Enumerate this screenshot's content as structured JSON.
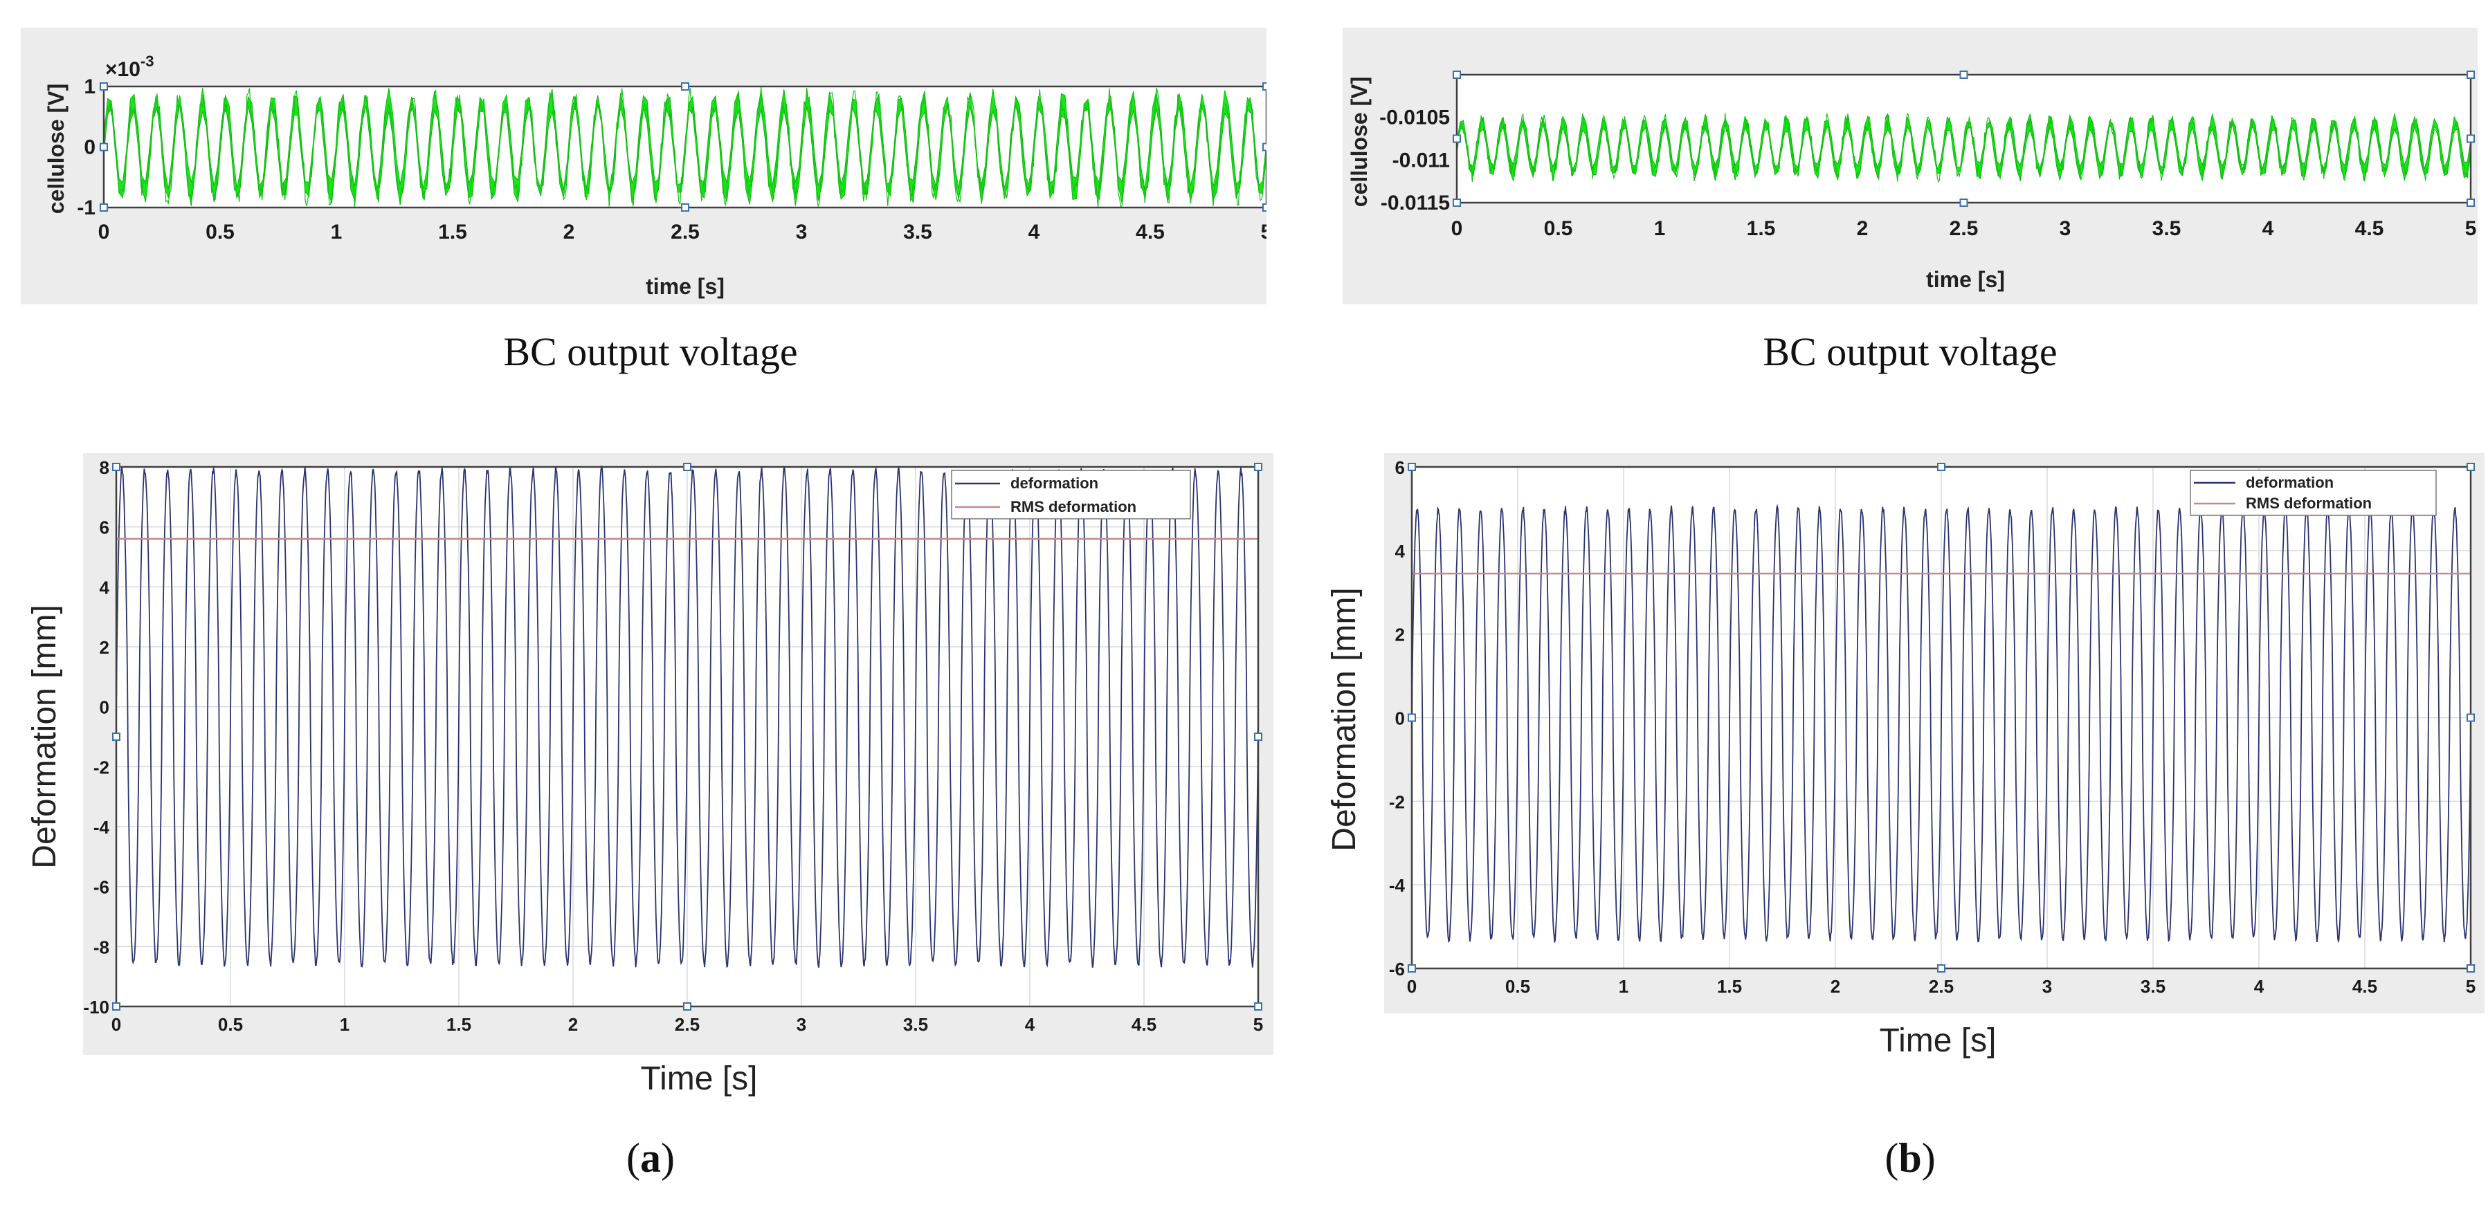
{
  "captions": {
    "top_left": "BC output voltage",
    "top_right": "BC output voltage"
  },
  "sublabels": {
    "a": {
      "open": "(",
      "letter": "a",
      "close": ")"
    },
    "b": {
      "open": "(",
      "letter": "b",
      "close": ")"
    }
  },
  "colors": {
    "voltage_signal": "#19e619",
    "deformation_signal": "#2a3470",
    "rms_line": "#c48a8a"
  },
  "chart_data": [
    {
      "id": "voltage-a",
      "type": "line",
      "title": "",
      "xlabel": "time [s]",
      "ylabel": "cellulose [V]",
      "xlim": [
        0,
        5
      ],
      "ylim": [
        -1,
        1
      ],
      "y_exponent_label": "×10",
      "y_exponent_power": "-3",
      "xticks": [
        "0",
        "0.5",
        "1",
        "1.5",
        "2",
        "2.5",
        "3",
        "3.5",
        "4",
        "4.5",
        "5"
      ],
      "yticks": [
        "1",
        "0",
        "-1"
      ],
      "ytick_values": [
        1,
        0,
        -1
      ],
      "series": [
        {
          "name": "cellulose",
          "frequency_hz": 10,
          "amplitude_mean": 0.78,
          "offset": 0.0,
          "band": 0.25,
          "unit_scale": "1e-3 V"
        }
      ],
      "grid": false
    },
    {
      "id": "voltage-b",
      "type": "line",
      "title": "",
      "xlabel": "time [s]",
      "ylabel": "cellulose [V]",
      "xlim": [
        0,
        5
      ],
      "ylim": [
        -0.0115,
        -0.01
      ],
      "xticks": [
        "0",
        "0.5",
        "1",
        "1.5",
        "2",
        "2.5",
        "3",
        "3.5",
        "4",
        "4.5",
        "5"
      ],
      "yticks": [
        "-0.0105",
        "-0.011",
        "-0.0115"
      ],
      "ytick_values": [
        -0.0105,
        -0.011,
        -0.0115
      ],
      "series": [
        {
          "name": "cellulose",
          "frequency_hz": 10,
          "amplitude_mean": 0.0003,
          "offset": -0.01085,
          "band": 0.00012
        }
      ],
      "grid": false
    },
    {
      "id": "deformation-a",
      "type": "line",
      "title": "",
      "xlabel": "Time [s]",
      "ylabel": "Deformation [mm]",
      "xlim": [
        0,
        5
      ],
      "ylim": [
        -10,
        8
      ],
      "xticks": [
        "0",
        "0.5",
        "1",
        "1.5",
        "2",
        "2.5",
        "3",
        "3.5",
        "4",
        "4.5",
        "5"
      ],
      "yticks": [
        "8",
        "6",
        "4",
        "2",
        "0",
        "-2",
        "-4",
        "-6",
        "-8",
        "-10"
      ],
      "ytick_values": [
        8,
        6,
        4,
        2,
        0,
        -2,
        -4,
        -6,
        -8,
        -10
      ],
      "series": [
        {
          "name": "deformation",
          "frequency_hz": 10,
          "max": 7.9,
          "min": -8.6
        },
        {
          "name": "RMS deformation",
          "value": 5.6
        }
      ],
      "legend": [
        "deformation",
        "RMS deformation"
      ],
      "legend_position": "top-right",
      "grid": true
    },
    {
      "id": "deformation-b",
      "type": "line",
      "title": "",
      "xlabel": "Time [s]",
      "ylabel": "Deformation [mm]",
      "xlim": [
        0,
        5
      ],
      "ylim": [
        -6,
        6
      ],
      "xticks": [
        "0",
        "0.5",
        "1",
        "1.5",
        "2",
        "2.5",
        "3",
        "3.5",
        "4",
        "4.5",
        "5"
      ],
      "yticks": [
        "6",
        "4",
        "2",
        "0",
        "-2",
        "-4",
        "-6"
      ],
      "ytick_values": [
        6,
        4,
        2,
        0,
        -2,
        -4,
        -6
      ],
      "series": [
        {
          "name": "deformation",
          "frequency_hz": 10,
          "max": 5.0,
          "min": -5.3
        },
        {
          "name": "RMS deformation",
          "value": 3.45
        }
      ],
      "legend": [
        "deformation",
        "RMS deformation"
      ],
      "legend_position": "top-right",
      "grid": true
    }
  ]
}
